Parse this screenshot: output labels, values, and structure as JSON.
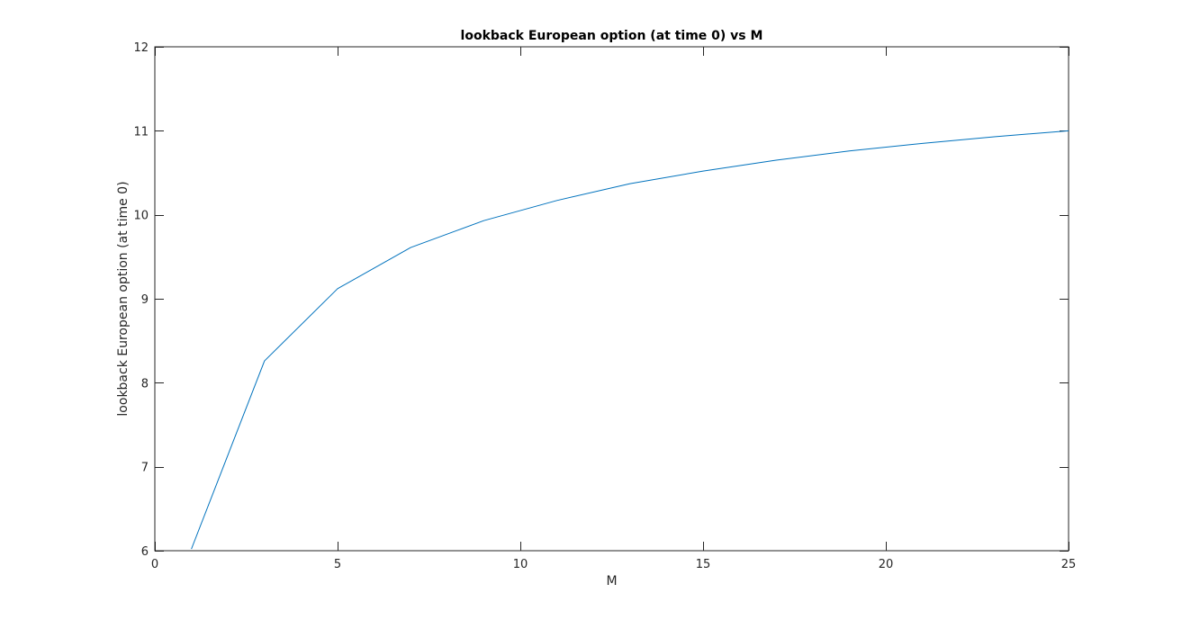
{
  "chart_data": {
    "type": "line",
    "title": "lookback European option (at time 0) vs M",
    "xlabel": "M",
    "ylabel": "lookback European option (at time 0)",
    "xlim": [
      0,
      25
    ],
    "ylim": [
      6,
      12
    ],
    "x_ticks": [
      0,
      5,
      10,
      15,
      20,
      25
    ],
    "y_ticks": [
      6,
      7,
      8,
      9,
      10,
      11,
      12
    ],
    "grid": false,
    "box": true,
    "series": [
      {
        "color": "#0072bd",
        "x": [
          1,
          3,
          5,
          7,
          9,
          11,
          13,
          15,
          17,
          19,
          21,
          23,
          25
        ],
        "y": [
          6.02,
          8.26,
          9.12,
          9.61,
          9.93,
          10.17,
          10.37,
          10.52,
          10.65,
          10.76,
          10.85,
          10.93,
          11.0
        ]
      }
    ]
  }
}
